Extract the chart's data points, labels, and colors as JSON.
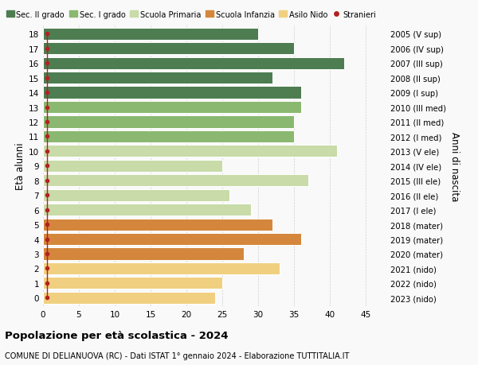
{
  "ages": [
    0,
    1,
    2,
    3,
    4,
    5,
    6,
    7,
    8,
    9,
    10,
    11,
    12,
    13,
    14,
    15,
    16,
    17,
    18
  ],
  "values": [
    24,
    25,
    33,
    28,
    36,
    32,
    29,
    26,
    37,
    25,
    41,
    35,
    35,
    36,
    36,
    32,
    42,
    35,
    30
  ],
  "right_labels": [
    "2023 (nido)",
    "2022 (nido)",
    "2021 (nido)",
    "2020 (mater)",
    "2019 (mater)",
    "2018 (mater)",
    "2017 (I ele)",
    "2016 (II ele)",
    "2015 (III ele)",
    "2014 (IV ele)",
    "2013 (V ele)",
    "2012 (I med)",
    "2011 (II med)",
    "2010 (III med)",
    "2009 (I sup)",
    "2008 (II sup)",
    "2007 (III sup)",
    "2006 (IV sup)",
    "2005 (V sup)"
  ],
  "bar_colors": [
    "#f0d080",
    "#f0d080",
    "#f0d080",
    "#d4873c",
    "#d4873c",
    "#d4873c",
    "#c8dba8",
    "#c8dba8",
    "#c8dba8",
    "#c8dba8",
    "#c8dba8",
    "#8ab870",
    "#8ab870",
    "#8ab870",
    "#4e7d52",
    "#4e7d52",
    "#4e7d52",
    "#4e7d52",
    "#4e7d52"
  ],
  "legend_labels": [
    "Sec. II grado",
    "Sec. I grado",
    "Scuola Primaria",
    "Scuola Infanzia",
    "Asilo Nido",
    "Stranieri"
  ],
  "legend_colors": [
    "#4e7d52",
    "#8ab870",
    "#c8dba8",
    "#d4873c",
    "#f0d080",
    "#b22222"
  ],
  "ylabel": "Età alunni",
  "right_ylabel": "Anni di nascita",
  "title": "Popolazione per età scolastica - 2024",
  "subtitle": "COMUNE DI DELIANUOVA (RC) - Dati ISTAT 1° gennaio 2024 - Elaborazione TUTTITALIA.IT",
  "xlim": [
    0,
    48
  ],
  "xticks": [
    0,
    5,
    10,
    15,
    20,
    25,
    30,
    35,
    40,
    45
  ],
  "background_color": "#f9f9f9",
  "grid_color": "#d0d0d0",
  "stranieri_color": "#b22222",
  "bar_height": 0.82
}
